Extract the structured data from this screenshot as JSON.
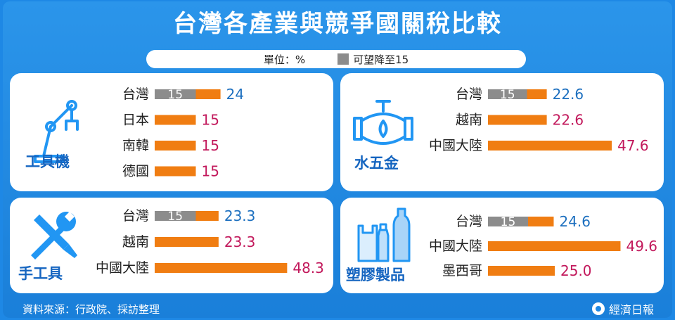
{
  "title": "台灣各產業與競爭國關稅比較",
  "legend": {
    "unit": "單位：%",
    "gray_label": "可望降至15"
  },
  "colors": {
    "background": "#1e88e5",
    "bar": "#f07d12",
    "gray": "#8c8c8c",
    "taiwan_value": "#1c6fbf",
    "other_value": "#c2185b",
    "heading": "#1565c0"
  },
  "footer": {
    "source": "資料來源：行政院、採訪整理",
    "brand": "經濟日報"
  },
  "chart_data": [
    {
      "type": "bar",
      "title": "工具機",
      "icon": "robot-arm-icon",
      "scale_max": 50,
      "categories": [
        "台灣",
        "日本",
        "南韓",
        "德國"
      ],
      "values": [
        24,
        15,
        15,
        15
      ],
      "labels": [
        "24",
        "15",
        "15",
        "15"
      ],
      "possible_reduction": [
        15,
        null,
        null,
        null
      ]
    },
    {
      "type": "bar",
      "title": "水五金",
      "icon": "faucet-icon",
      "scale_max": 50,
      "categories": [
        "台灣",
        "越南",
        "中國大陸"
      ],
      "values": [
        22.6,
        22.6,
        47.6
      ],
      "labels": [
        "22.6",
        "22.6",
        "47.6"
      ],
      "possible_reduction": [
        15,
        null,
        null
      ]
    },
    {
      "type": "bar",
      "title": "手工具",
      "icon": "wrench-screwdriver-icon",
      "scale_max": 50,
      "categories": [
        "台灣",
        "越南",
        "中國大陸"
      ],
      "values": [
        23.3,
        23.3,
        48.3
      ],
      "labels": [
        "23.3",
        "23.3",
        "48.3"
      ],
      "possible_reduction": [
        15,
        null,
        null
      ]
    },
    {
      "type": "bar",
      "title": "塑膠製品",
      "icon": "plastic-bottles-icon",
      "scale_max": 50,
      "categories": [
        "台灣",
        "中國大陸",
        "墨西哥"
      ],
      "values": [
        24.6,
        49.6,
        25.0
      ],
      "labels": [
        "24.6",
        "49.6",
        "25.0"
      ],
      "possible_reduction": [
        15,
        null,
        null
      ]
    }
  ]
}
